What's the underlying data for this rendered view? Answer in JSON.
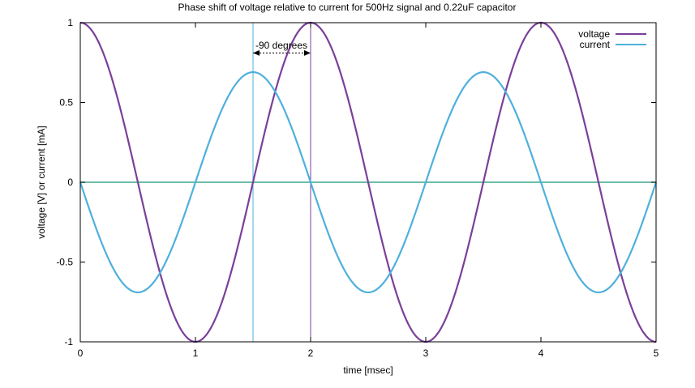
{
  "chart_data": {
    "type": "line",
    "title": "Phase shift of voltage relative to current for 500Hz signal and 0.22uF capacitor",
    "xlabel": "time [msec]",
    "ylabel": "voltage [V] or current [mA]",
    "xlim": [
      0,
      5
    ],
    "ylim": [
      -1,
      1
    ],
    "x_ticks": [
      0,
      1,
      2,
      3,
      4,
      5
    ],
    "x_tick_labels": [
      "0",
      "1",
      "2",
      "3",
      "4",
      "5"
    ],
    "y_ticks": [
      -1,
      -0.5,
      0,
      0.5,
      1
    ],
    "y_tick_labels": [
      "-1",
      "-0.5",
      "0",
      "0.5",
      "1"
    ],
    "grid": false,
    "legend_position": "top-right",
    "series": [
      {
        "name": "voltage",
        "color": "#7b3f99",
        "function": "cos",
        "amplitude": 1.0,
        "frequency_per_ms": 0.5,
        "x": [
          0,
          0.25,
          0.5,
          0.75,
          1,
          1.25,
          1.5,
          1.75,
          2,
          2.25,
          2.5,
          2.75,
          3,
          3.25,
          3.5,
          3.75,
          4,
          4.25,
          4.5,
          4.75,
          5
        ],
        "y": [
          1,
          0.707,
          0,
          -0.707,
          -1,
          -0.707,
          0,
          0.707,
          1,
          0.707,
          0,
          -0.707,
          -1,
          -0.707,
          0,
          0.707,
          1,
          0.707,
          0,
          -0.707,
          -1
        ]
      },
      {
        "name": "current",
        "color": "#4fb0dd",
        "function": "-sin",
        "amplitude": 0.69,
        "frequency_per_ms": 0.5,
        "x": [
          0,
          0.25,
          0.5,
          0.75,
          1,
          1.25,
          1.5,
          1.75,
          2,
          2.25,
          2.5,
          2.75,
          3,
          3.25,
          3.5,
          3.75,
          4,
          4.25,
          4.5,
          4.75,
          5
        ],
        "y": [
          0,
          -0.488,
          -0.69,
          -0.488,
          0,
          0.488,
          0.69,
          0.488,
          0,
          -0.488,
          -0.69,
          -0.488,
          0,
          0.488,
          0.69,
          0.488,
          0,
          -0.488,
          -0.69,
          -0.488,
          0
        ]
      }
    ],
    "zero_line": {
      "y": 0,
      "color": "#3aa88a"
    },
    "markers": [
      {
        "x": 1.5,
        "color": "#4fb0dd"
      },
      {
        "x": 2.0,
        "color": "#7b3f99"
      }
    ],
    "annotation": {
      "text": "-90 degrees",
      "x_from": 1.5,
      "x_to": 2.0,
      "y": 0.81
    }
  }
}
